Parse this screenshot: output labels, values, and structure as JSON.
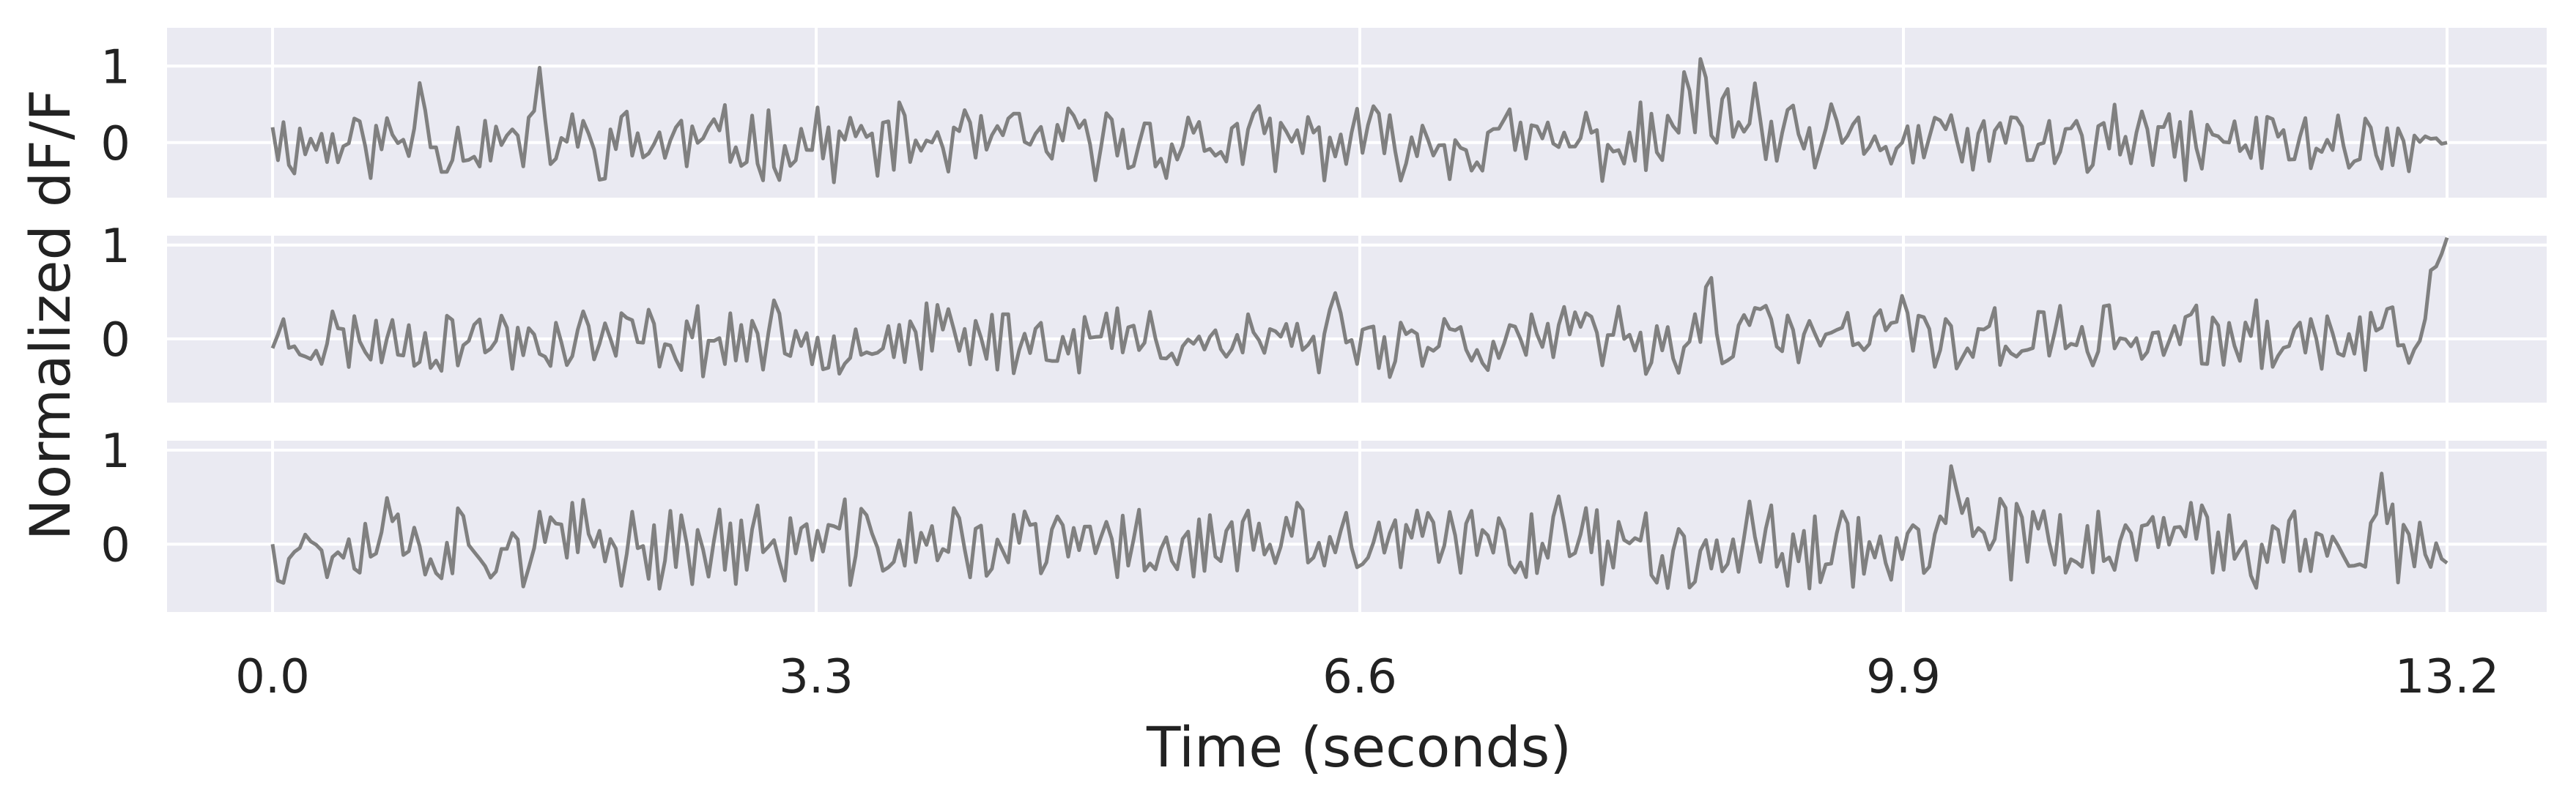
{
  "chart_data": {
    "type": "line",
    "xlabel": "Time (seconds)",
    "ylabel": "Normalized dF/F",
    "x_range": [
      0,
      13.2
    ],
    "x_ticks": [
      0.0,
      3.3,
      6.6,
      9.9,
      13.2
    ],
    "x_tick_labels": [
      "0.0",
      "3.3",
      "6.6",
      "9.9",
      "13.2"
    ],
    "grid": true,
    "style": {
      "panel_bg": "#eaeaf2",
      "grid_color": "#ffffff",
      "line_color": "#808080"
    },
    "panels": [
      {
        "ylim": [
          -0.72,
          1.5
        ],
        "yticks": [
          0,
          1
        ],
        "ytick_labels": [
          "0",
          "1"
        ],
        "samples": 400,
        "noise_amplitude": 0.3,
        "noise_seed": 11,
        "peaks": [
          [
            1.62,
            1.0
          ],
          [
            8.58,
            1.2
          ],
          [
            8.68,
            1.45
          ],
          [
            8.82,
            0.95
          ],
          [
            9.0,
            0.8
          ],
          [
            0.9,
            0.9
          ]
        ],
        "start_value": 0.2,
        "end_value": 0.0
      },
      {
        "ylim": [
          -0.68,
          1.1
        ],
        "yticks": [
          0,
          1
        ],
        "ytick_labels": [
          "0",
          "1"
        ],
        "samples": 400,
        "noise_amplitude": 0.22,
        "noise_seed": 23,
        "peaks": [
          [
            6.45,
            0.5
          ],
          [
            8.72,
            0.9
          ],
          [
            9.05,
            0.5
          ],
          [
            9.9,
            0.55
          ]
        ],
        "start_value": -0.1,
        "end_value": 1.1
      },
      {
        "ylim": [
          -0.72,
          1.1
        ],
        "yticks": [
          0,
          1
        ],
        "ytick_labels": [
          "0",
          "1"
        ],
        "samples": 400,
        "noise_amplitude": 0.28,
        "noise_seed": 37,
        "peaks": [
          [
            0.7,
            0.55
          ],
          [
            7.8,
            0.6
          ],
          [
            10.2,
            1.05
          ],
          [
            10.5,
            0.65
          ],
          [
            12.8,
            0.8
          ]
        ],
        "start_value": 0.0,
        "end_value": -0.2
      }
    ]
  }
}
